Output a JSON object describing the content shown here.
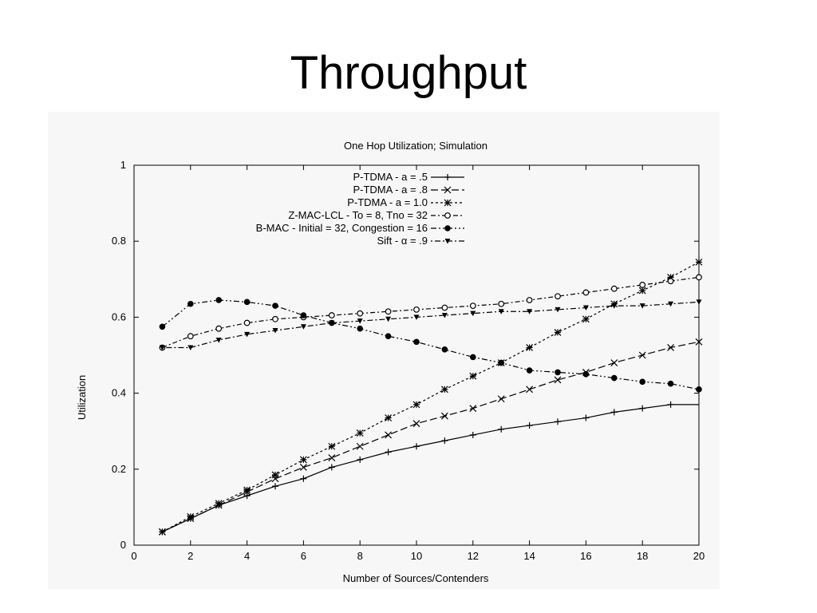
{
  "slide": {
    "title": "Throughput"
  },
  "chart_data": {
    "type": "line",
    "title": "One Hop Utilization; Simulation",
    "xlabel": "Number of Sources/Contenders",
    "ylabel": "Utilization",
    "xlim": [
      0,
      20
    ],
    "ylim": [
      0,
      1
    ],
    "xticks": [
      0,
      2,
      4,
      6,
      8,
      10,
      12,
      14,
      16,
      18,
      20
    ],
    "yticks": [
      0,
      0.2,
      0.4,
      0.6,
      0.8,
      1
    ],
    "ytick_labels": [
      "0",
      "0.2",
      "0.4",
      "0.6",
      "0.8",
      "1"
    ],
    "grid": false,
    "legend_position": "top-center",
    "x": [
      1,
      2,
      3,
      4,
      5,
      6,
      7,
      8,
      9,
      10,
      11,
      12,
      13,
      14,
      15,
      16,
      17,
      18,
      19,
      20
    ],
    "series": [
      {
        "name": "P-TDMA - a = .5",
        "marker": "plus",
        "dash": "solid",
        "values": [
          0.035,
          0.07,
          0.105,
          0.13,
          0.155,
          0.175,
          0.205,
          0.225,
          0.245,
          0.26,
          0.275,
          0.29,
          0.305,
          0.315,
          0.325,
          0.335,
          0.35,
          0.36,
          0.37,
          0.37
        ]
      },
      {
        "name": "P-TDMA - a = .8",
        "marker": "x",
        "dash": "long-dash",
        "values": [
          0.035,
          0.07,
          0.105,
          0.14,
          0.175,
          0.205,
          0.23,
          0.26,
          0.29,
          0.32,
          0.34,
          0.36,
          0.385,
          0.41,
          0.435,
          0.455,
          0.48,
          0.5,
          0.52,
          0.535
        ]
      },
      {
        "name": "P-TDMA - a = 1.0",
        "marker": "star",
        "dash": "short-dash",
        "values": [
          0.035,
          0.075,
          0.11,
          0.145,
          0.185,
          0.225,
          0.26,
          0.295,
          0.335,
          0.37,
          0.41,
          0.445,
          0.48,
          0.52,
          0.56,
          0.595,
          0.635,
          0.67,
          0.705,
          0.745
        ]
      },
      {
        "name": "Z-MAC-LCL - To = 8, Tno = 32",
        "marker": "open-circle",
        "dash": "dash-dot",
        "values": [
          0.52,
          0.55,
          0.57,
          0.585,
          0.595,
          0.6,
          0.605,
          0.61,
          0.615,
          0.62,
          0.625,
          0.63,
          0.635,
          0.645,
          0.655,
          0.665,
          0.675,
          0.685,
          0.695,
          0.705
        ]
      },
      {
        "name": "B-MAC - Initial = 32, Congestion = 16",
        "marker": "filled-circle",
        "dash": "dash-dot-dot",
        "values": [
          0.575,
          0.635,
          0.645,
          0.64,
          0.63,
          0.605,
          0.585,
          0.57,
          0.55,
          0.535,
          0.515,
          0.495,
          0.48,
          0.46,
          0.455,
          0.45,
          0.44,
          0.43,
          0.425,
          0.41
        ]
      },
      {
        "name": "Sift - α = .9",
        "marker": "triangle-down",
        "dash": "dot-dash",
        "values": [
          0.52,
          0.52,
          0.54,
          0.555,
          0.565,
          0.575,
          0.585,
          0.59,
          0.595,
          0.6,
          0.605,
          0.61,
          0.615,
          0.615,
          0.62,
          0.625,
          0.63,
          0.63,
          0.635,
          0.64
        ]
      }
    ]
  }
}
